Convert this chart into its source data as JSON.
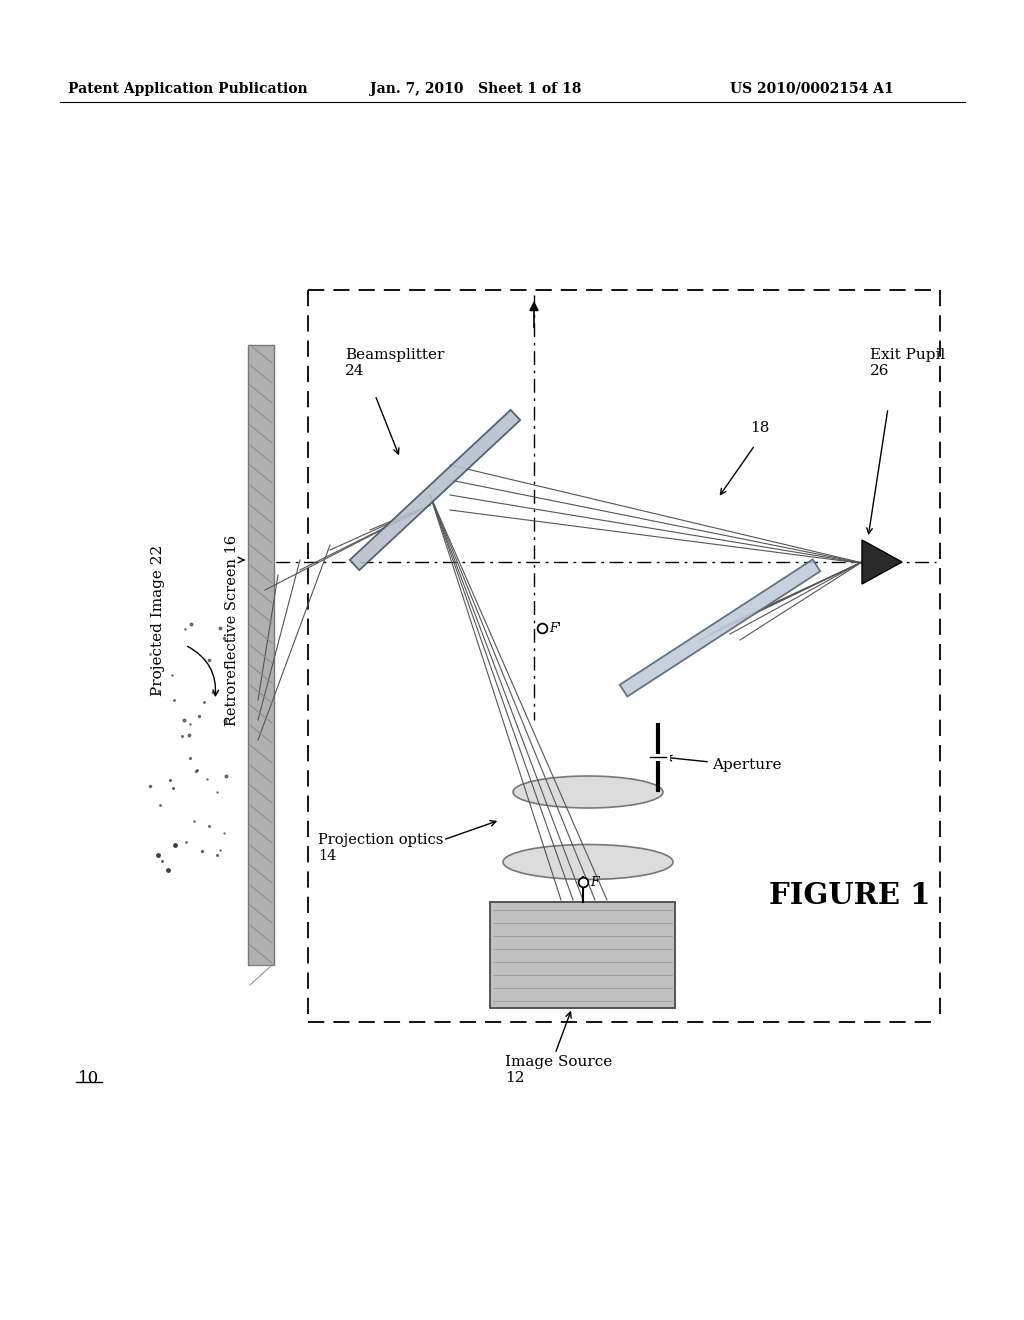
{
  "header_left": "Patent Application Publication",
  "header_center": "Jan. 7, 2010   Sheet 1 of 18",
  "header_right": "US 2010/0002154 A1",
  "bg_color": "#ffffff",
  "fig_label": "10",
  "figure_title": "FIGURE 1",
  "labels": {
    "projected_image": "Projected Image 22",
    "retroreflective": "Retroreflective Screen 16",
    "beamsplitter": "Beamsplitter\n24",
    "projection_optics": "Projection optics\n14",
    "image_source": "Image Source\n12",
    "aperture": "Aperture",
    "exit_pupil": "Exit Pupil\n26",
    "label_18": "18"
  }
}
